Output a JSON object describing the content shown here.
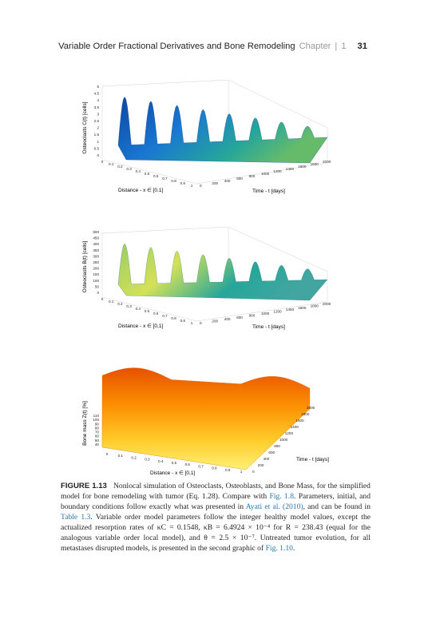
{
  "header": {
    "title": "Variable Order Fractional Derivatives and Bone Remodeling",
    "chapter_label": "Chapter",
    "separator": "|",
    "chapter_number": "1",
    "page_number": "31"
  },
  "figures": [
    {
      "zlabel": "Osteoclasts C(t) [cells]",
      "xlabel": "Distance - x ∈ [0,1]",
      "ylabel": "Time - t [days]",
      "z_ticks": [
        "0",
        "0.5",
        "1",
        "1.5",
        "2",
        "2.5",
        "3",
        "3.5",
        "4",
        "4.5",
        "5"
      ],
      "x_ticks": [
        "0",
        "0.1",
        "0.2",
        "0.3",
        "0.4",
        "0.5",
        "0.6",
        "0.7",
        "0.8",
        "0.9",
        "1"
      ],
      "t_ticks": [
        "0",
        "200",
        "400",
        "600",
        "800",
        "1000",
        "1200",
        "1400",
        "1600",
        "1800",
        "2000"
      ]
    },
    {
      "zlabel": "Osteoclasts B(t) [cells]",
      "xlabel": "Distance - x ∈ [0,1]",
      "ylabel": "Time - t [days]",
      "z_ticks": [
        "0",
        "50",
        "100",
        "150",
        "200",
        "250",
        "300",
        "350",
        "400",
        "450",
        "500"
      ],
      "x_ticks": [
        "0",
        "0.1",
        "0.2",
        "0.3",
        "0.4",
        "0.5",
        "0.6",
        "0.7",
        "0.8",
        "0.9",
        "1"
      ],
      "t_ticks": [
        "0",
        "200",
        "400",
        "600",
        "800",
        "1000",
        "1200",
        "1400",
        "1600",
        "1800",
        "2000"
      ]
    },
    {
      "zlabel": "Bone mass Z(t) [%]",
      "xlabel": "Distance - x ∈ [0,1]",
      "ylabel": "Time - t [days]",
      "z_ticks": [
        "40",
        "50",
        "60",
        "70",
        "80",
        "90",
        "100",
        "110"
      ],
      "x_ticks": [
        "0",
        "0.1",
        "0.2",
        "0.3",
        "0.4",
        "0.5",
        "0.6",
        "0.7",
        "0.8",
        "0.9",
        "1"
      ],
      "t_ticks": [
        "0",
        "200",
        "400",
        "600",
        "800",
        "1000",
        "1200",
        "1400",
        "1600",
        "1800",
        "2000"
      ]
    }
  ],
  "caption": {
    "label": "FIGURE 1.13",
    "text_1": "Nonlocal simulation of Osteoclasts, Osteoblasts, and Bone Mass, for the simplified model for bone remodeling with tumor (Eq. 1.28). Compare with ",
    "link_1": "Fig. 1.8",
    "text_2": ". Parameters, initial, and boundary conditions follow exactly what was presented in ",
    "link_2": "Ayati et al. (2010)",
    "text_3": ", and can be found in ",
    "link_3": "Table 1.3",
    "text_4": ". Variable order model parameters follow the integer healthy model values, except the actualized resorption rates of κC = 0.1548, κB = 6.4924 × 10⁻⁴ for R = 238.43 (equal for the analogous variable order local model), and θ = 2.5 × 10⁻⁷. Untreated tumor evolution, for all metastases disrupted models, is presented in the second graphic of ",
    "link_4": "Fig. 1.10",
    "text_5": "."
  },
  "colors": {
    "link": "#1f77b4",
    "gray": "#9a9a9a",
    "text": "#231f20"
  }
}
